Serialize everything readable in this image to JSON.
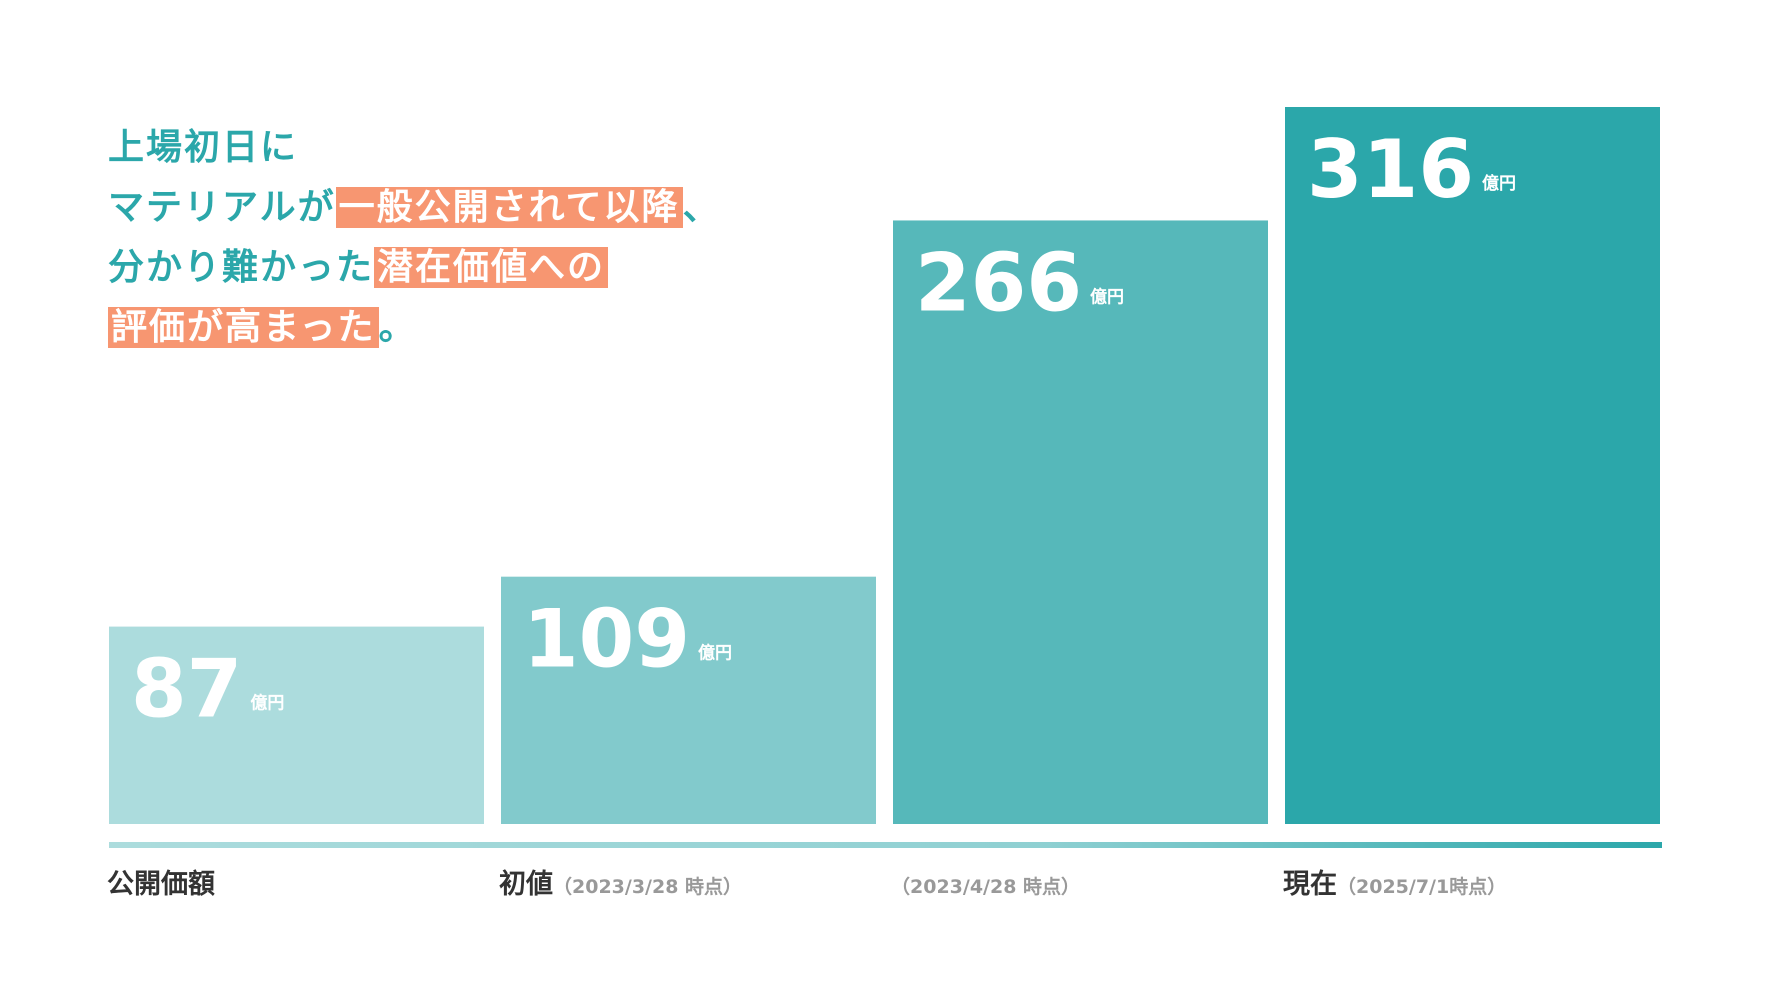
{
  "chart_data": {
    "type": "bar",
    "title_lines": [
      [
        {
          "text": "上場初日に",
          "highlight": false
        }
      ],
      [
        {
          "text": "マテリアルが",
          "highlight": false
        },
        {
          "text": "一般公開されて以降",
          "highlight": true
        },
        {
          "text": "、",
          "highlight": false
        }
      ],
      [
        {
          "text": "分かり難かった",
          "highlight": false
        },
        {
          "text": "潜在価値への",
          "highlight": true
        }
      ],
      [
        {
          "text": "評価が高まった",
          "highlight": true
        },
        {
          "text": "。",
          "highlight": false
        }
      ]
    ],
    "title_color": "#2ba7aa",
    "highlight_color": "#f79671",
    "categories": [
      "公開価額",
      "初値",
      null,
      "現在"
    ],
    "category_notes": [
      null,
      "（2023/3/28 時点）",
      "（2023/4/28 時点）",
      "（2025/7/1時点）"
    ],
    "values": [
      87,
      109,
      266,
      316
    ],
    "unit": "億円",
    "colors": [
      "#acdcdd",
      "#82cacc",
      "#56b8ba",
      "#2ba7aa"
    ]
  }
}
